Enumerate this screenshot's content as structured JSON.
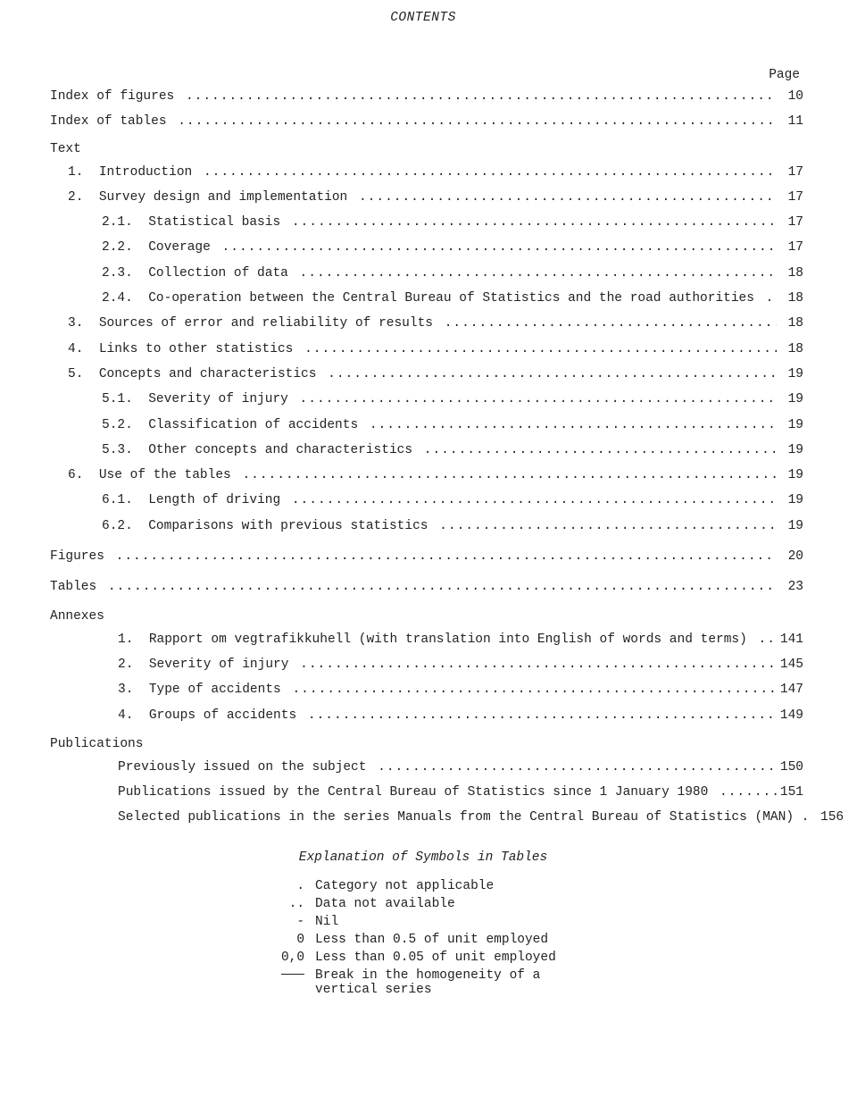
{
  "header": "CONTENTS",
  "page_label": "Page",
  "leader": "....................................................................................................................................................................",
  "toc": [
    {
      "level": 0,
      "num": "",
      "label": "Index of figures",
      "page": "10",
      "leader": true
    },
    {
      "level": 0,
      "num": "",
      "label": "Index of tables",
      "page": "11",
      "leader": true
    },
    {
      "level": 0,
      "num": "",
      "label": "Text",
      "page": "",
      "leader": false,
      "section": true
    },
    {
      "level": 1,
      "num": "1.  ",
      "label": "Introduction",
      "page": "17",
      "leader": true
    },
    {
      "level": 1,
      "num": "2.  ",
      "label": "Survey design and implementation",
      "page": "17",
      "leader": true
    },
    {
      "level": 2,
      "num": "2.1.  ",
      "label": "Statistical basis",
      "page": "17",
      "leader": true
    },
    {
      "level": 2,
      "num": "2.2.  ",
      "label": "Coverage",
      "page": "17",
      "leader": true
    },
    {
      "level": 2,
      "num": "2.3.  ",
      "label": "Collection of data",
      "page": "18",
      "leader": true
    },
    {
      "level": 2,
      "num": "2.4.  ",
      "label": "Co-operation between the Central Bureau of Statistics and the road authorities",
      "page": "18",
      "leader": true
    },
    {
      "level": 1,
      "num": "3.  ",
      "label": "Sources of error and reliability of results",
      "page": "18",
      "leader": true
    },
    {
      "level": 1,
      "num": "4.  ",
      "label": "Links to other statistics",
      "page": "18",
      "leader": true
    },
    {
      "level": 1,
      "num": "5.  ",
      "label": "Concepts and characteristics",
      "page": "19",
      "leader": true
    },
    {
      "level": 2,
      "num": "5.1.  ",
      "label": "Severity of injury",
      "page": "19",
      "leader": true
    },
    {
      "level": 2,
      "num": "5.2.  ",
      "label": "Classification of accidents",
      "page": "19",
      "leader": true
    },
    {
      "level": 2,
      "num": "5.3.  ",
      "label": "Other concepts and characteristics",
      "page": "19",
      "leader": true
    },
    {
      "level": 1,
      "num": "6.  ",
      "label": "Use of the tables",
      "page": "19",
      "leader": true
    },
    {
      "level": 2,
      "num": "6.1.  ",
      "label": "Length of driving",
      "page": "19",
      "leader": true
    },
    {
      "level": 2,
      "num": "6.2.  ",
      "label": "Comparisons with previous statistics",
      "page": "19",
      "leader": true
    },
    {
      "level": 0,
      "num": "",
      "label": "Figures",
      "page": "20",
      "leader": true,
      "gap": true
    },
    {
      "level": 0,
      "num": "",
      "label": "Tables",
      "page": "23",
      "leader": true,
      "gap": true
    },
    {
      "level": 0,
      "num": "",
      "label": "Annexes",
      "page": "",
      "leader": false,
      "section": true,
      "gap": true
    },
    {
      "level": 3,
      "num": "1.  ",
      "label": "Rapport om vegtrafikkuhell (with translation into English of words and terms)",
      "page": "141",
      "leader": true
    },
    {
      "level": 3,
      "num": "2.  ",
      "label": "Severity of injury",
      "page": "145",
      "leader": true
    },
    {
      "level": 3,
      "num": "3.  ",
      "label": "Type of accidents",
      "page": "147",
      "leader": true
    },
    {
      "level": 3,
      "num": "4.  ",
      "label": "Groups of accidents",
      "page": "149",
      "leader": true
    },
    {
      "level": 0,
      "num": "",
      "label": "Publications",
      "page": "",
      "leader": false,
      "section": true,
      "gap": true
    },
    {
      "level": 3,
      "num": "",
      "label": "Previously issued on the subject",
      "page": "150",
      "leader": true
    },
    {
      "level": 3,
      "num": "",
      "label": "Publications issued by the Central Bureau of Statistics since 1 January 1980",
      "page": "151",
      "leader": true
    },
    {
      "level": 3,
      "num": "",
      "label": "Selected publications in the series Manuals from the Central Bureau of Statistics (MAN) .",
      "page": "156",
      "leader": false
    }
  ],
  "symbols_title": "Explanation of Symbols in Tables",
  "symbols": [
    {
      "sym": ".",
      "desc": "Category not applicable"
    },
    {
      "sym": "..",
      "desc": "Data not available"
    },
    {
      "sym": "-",
      "desc": "Nil"
    },
    {
      "sym": "0",
      "desc": "Less than 0.5 of unit employed"
    },
    {
      "sym": "0,0",
      "desc": "Less than 0.05 of unit employed"
    },
    {
      "sym": "__hr__",
      "desc": "Break in the homogeneity of a vertical series"
    }
  ]
}
